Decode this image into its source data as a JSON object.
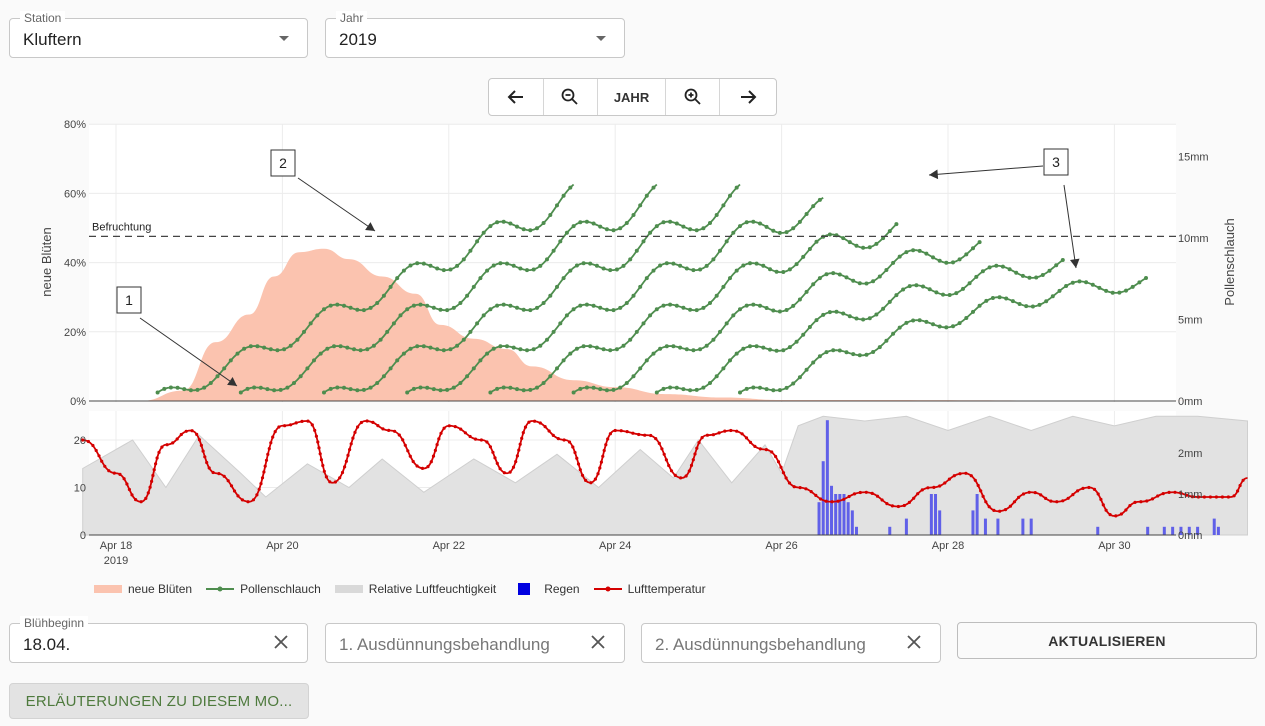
{
  "controls": {
    "station": {
      "label": "Station",
      "value": "Kluftern"
    },
    "year": {
      "label": "Jahr",
      "value": "2019"
    },
    "nav": {
      "year_label": "JAHR"
    },
    "bluehbeginn": {
      "label": "Blühbeginn",
      "value": "18.04."
    },
    "treatment1": {
      "placeholder": "1. Ausdünnungsbehandlung"
    },
    "treatment2": {
      "placeholder": "2. Ausdünnungsbehandlung"
    },
    "update_label": "AKTUALISIEREN",
    "explain_label": "ERLÄUTERUNGEN ZU DIESEM MO..."
  },
  "legend": [
    {
      "label": "neue Blüten",
      "color": "#fbc3af",
      "kind": "area"
    },
    {
      "label": "Pollenschlauch",
      "color": "#4e8d4e",
      "kind": "line-dot"
    },
    {
      "label": "Relative Luftfeuchtigkeit",
      "color": "#d6d6d6",
      "kind": "area"
    },
    {
      "label": "Regen",
      "color": "#0000e0",
      "kind": "square"
    },
    {
      "label": "Lufttemperatur",
      "color": "#d40000",
      "kind": "line-dot"
    }
  ],
  "chart_data": [
    {
      "type": "area",
      "ylabel": "neue Blüten",
      "y2label": "Pollenschlauch",
      "ylim": [
        0,
        80
      ],
      "y_ticks": [
        "0%",
        "20%",
        "40%",
        "60%",
        "80%"
      ],
      "y2_ticks": [
        "0mm",
        "5mm",
        "10mm",
        "15mm"
      ],
      "threshold_label": "Befruchtung",
      "threshold_mm": 10.1,
      "annotations": [
        "1",
        "2",
        "3"
      ],
      "series": [
        {
          "name": "neue Blüten",
          "x": [
            18.3,
            18.8,
            19.2,
            19.6,
            19.9,
            20.2,
            20.5,
            20.8,
            21.2,
            21.6,
            21.9,
            22.3,
            22.7,
            23.0,
            23.5,
            24.0,
            24.6,
            25.3,
            26.0,
            31.6
          ],
          "values": [
            0,
            3,
            17,
            25,
            36,
            43,
            44,
            41,
            36,
            31,
            22,
            18,
            15,
            10,
            6,
            4,
            2,
            1,
            0.3,
            0
          ]
        },
        {
          "name": "Pollenschlauch",
          "start_days": [
            18.5,
            19.5,
            20.5,
            21.5,
            22.5,
            23.5,
            24.5,
            25.5
          ],
          "end_days": [
            23.5,
            24.5,
            25.5,
            26.5,
            27.4,
            28.4,
            29.4,
            30.4
          ]
        }
      ]
    },
    {
      "type": "line",
      "x_ticks": [
        "Apr 18",
        "Apr 20",
        "Apr 22",
        "Apr 24",
        "Apr 26",
        "Apr 28",
        "Apr 30"
      ],
      "x_subtick": "2019",
      "ylim": [
        0,
        25
      ],
      "y_ticks": [
        "0",
        "10",
        "20"
      ],
      "y2_ticks": [
        "0mm",
        "1mm",
        "2mm"
      ],
      "series": [
        {
          "name": "Lufttemperatur",
          "x": [
            17.6,
            18.0,
            18.3,
            18.6,
            18.9,
            19.2,
            19.6,
            20.0,
            20.3,
            20.6,
            21.0,
            21.3,
            21.7,
            22.0,
            22.4,
            22.7,
            23.0,
            23.4,
            23.7,
            24.0,
            24.4,
            24.8,
            25.1,
            25.4,
            25.8,
            26.2,
            26.6,
            27.0,
            27.4,
            27.8,
            28.2,
            28.6,
            29.0,
            29.3,
            29.7,
            30.0,
            30.3,
            30.7,
            31.0,
            31.4,
            31.6
          ],
          "values": [
            20,
            13,
            7,
            19,
            22,
            13,
            7,
            23,
            24,
            11,
            24,
            22,
            14,
            23,
            20,
            13,
            24,
            20,
            11,
            22,
            21,
            12,
            21,
            22,
            18,
            10,
            7,
            9,
            6,
            10,
            13,
            5,
            9,
            7,
            10,
            4,
            7,
            9,
            8,
            8,
            12
          ]
        },
        {
          "name": "Relative Luftfeuchtigkeit",
          "x": [
            17.6,
            18.2,
            18.6,
            19.0,
            19.5,
            19.8,
            20.3,
            20.8,
            21.2,
            21.7,
            22.3,
            22.8,
            23.3,
            23.8,
            24.3,
            24.7,
            25.0,
            25.4,
            25.8,
            26.0,
            26.2,
            26.5,
            27.0,
            27.5,
            28.0,
            28.5,
            29.0,
            29.5,
            30.0,
            30.5,
            31.0,
            31.6
          ],
          "values": [
            14,
            20,
            10,
            21,
            13,
            8,
            15,
            10,
            16,
            9,
            16,
            11,
            17,
            10,
            18,
            12,
            20,
            11,
            19,
            13,
            23,
            25,
            24,
            25,
            22,
            25,
            22,
            25,
            23,
            25,
            25,
            24
          ]
        },
        {
          "name": "Regen",
          "unit": "mm",
          "x": [
            26.45,
            26.5,
            26.55,
            26.6,
            26.65,
            26.7,
            26.75,
            26.8,
            26.85,
            26.9,
            27.3,
            27.5,
            27.8,
            27.85,
            27.9,
            28.3,
            28.35,
            28.45,
            28.6,
            28.9,
            29.0,
            29.8,
            30.4,
            30.6,
            30.7,
            30.8,
            30.9,
            31.0,
            31.2,
            31.25
          ],
          "values": [
            0.8,
            1.8,
            2.8,
            1.2,
            1.0,
            1.0,
            1.0,
            0.8,
            0.6,
            0.2,
            0.2,
            0.4,
            1.0,
            1.0,
            0.6,
            0.6,
            1.0,
            0.4,
            0.4,
            0.4,
            0.4,
            0.2,
            0.2,
            0.2,
            0.2,
            0.2,
            0.2,
            0.2,
            0.4,
            0.2
          ]
        }
      ]
    }
  ]
}
